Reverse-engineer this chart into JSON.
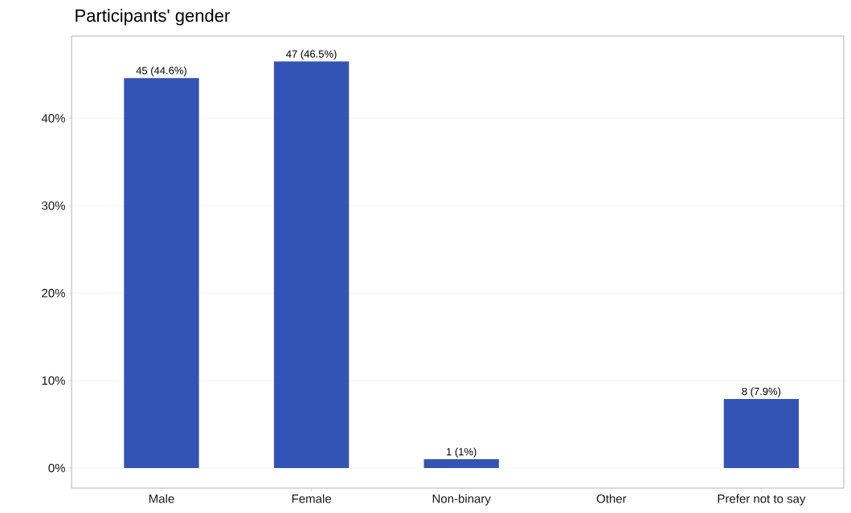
{
  "chart_data": {
    "type": "bar",
    "title": "Participants' gender",
    "categories": [
      "Male",
      "Female",
      "Non-binary",
      "Other",
      "Prefer not to say"
    ],
    "values": [
      44.6,
      46.5,
      1,
      0,
      7.9
    ],
    "value_labels": [
      "45 (44.6%)",
      "47 (46.5%)",
      "1 (1%)",
      null,
      "8 (7.9%)"
    ],
    "color": "#3353b5",
    "ylim": [
      -2.3,
      49.4
    ],
    "yticks": [
      {
        "value": 0,
        "label": "0%"
      },
      {
        "value": 10,
        "label": "10%"
      },
      {
        "value": 20,
        "label": "20%"
      },
      {
        "value": 30,
        "label": "30%"
      },
      {
        "value": 40,
        "label": "40%"
      }
    ],
    "grid": "y"
  }
}
